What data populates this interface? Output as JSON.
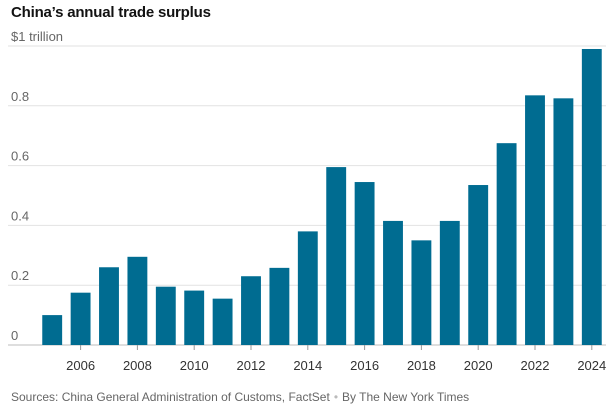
{
  "chart_data": {
    "type": "bar",
    "title": "China’s annual trade surplus",
    "ylabel": "$1 trillion",
    "xlabel": "",
    "ylim": [
      0,
      1.0
    ],
    "yticks": [
      {
        "value": 1.0,
        "label": "$1 trillion"
      },
      {
        "value": 0.8,
        "label": "0.8"
      },
      {
        "value": 0.6,
        "label": "0.6"
      },
      {
        "value": 0.4,
        "label": "0.4"
      },
      {
        "value": 0.2,
        "label": "0.2"
      },
      {
        "value": 0,
        "label": "0"
      }
    ],
    "categories": [
      2005,
      2006,
      2007,
      2008,
      2009,
      2010,
      2011,
      2012,
      2013,
      2014,
      2015,
      2016,
      2017,
      2018,
      2019,
      2020,
      2021,
      2022,
      2023,
      2024
    ],
    "x_tick_labels": [
      "2006",
      "2008",
      "2010",
      "2012",
      "2014",
      "2016",
      "2018",
      "2020",
      "2022",
      "2024"
    ],
    "values": [
      0.1,
      0.175,
      0.26,
      0.295,
      0.195,
      0.182,
      0.155,
      0.23,
      0.258,
      0.38,
      0.595,
      0.545,
      0.415,
      0.35,
      0.415,
      0.535,
      0.675,
      0.835,
      0.825,
      0.99
    ],
    "bar_color": "#006c91",
    "grid": true
  },
  "footer": {
    "sources": "Sources: China General Administration of Customs, FactSet",
    "separator": "•",
    "byline": "By The New York Times"
  }
}
